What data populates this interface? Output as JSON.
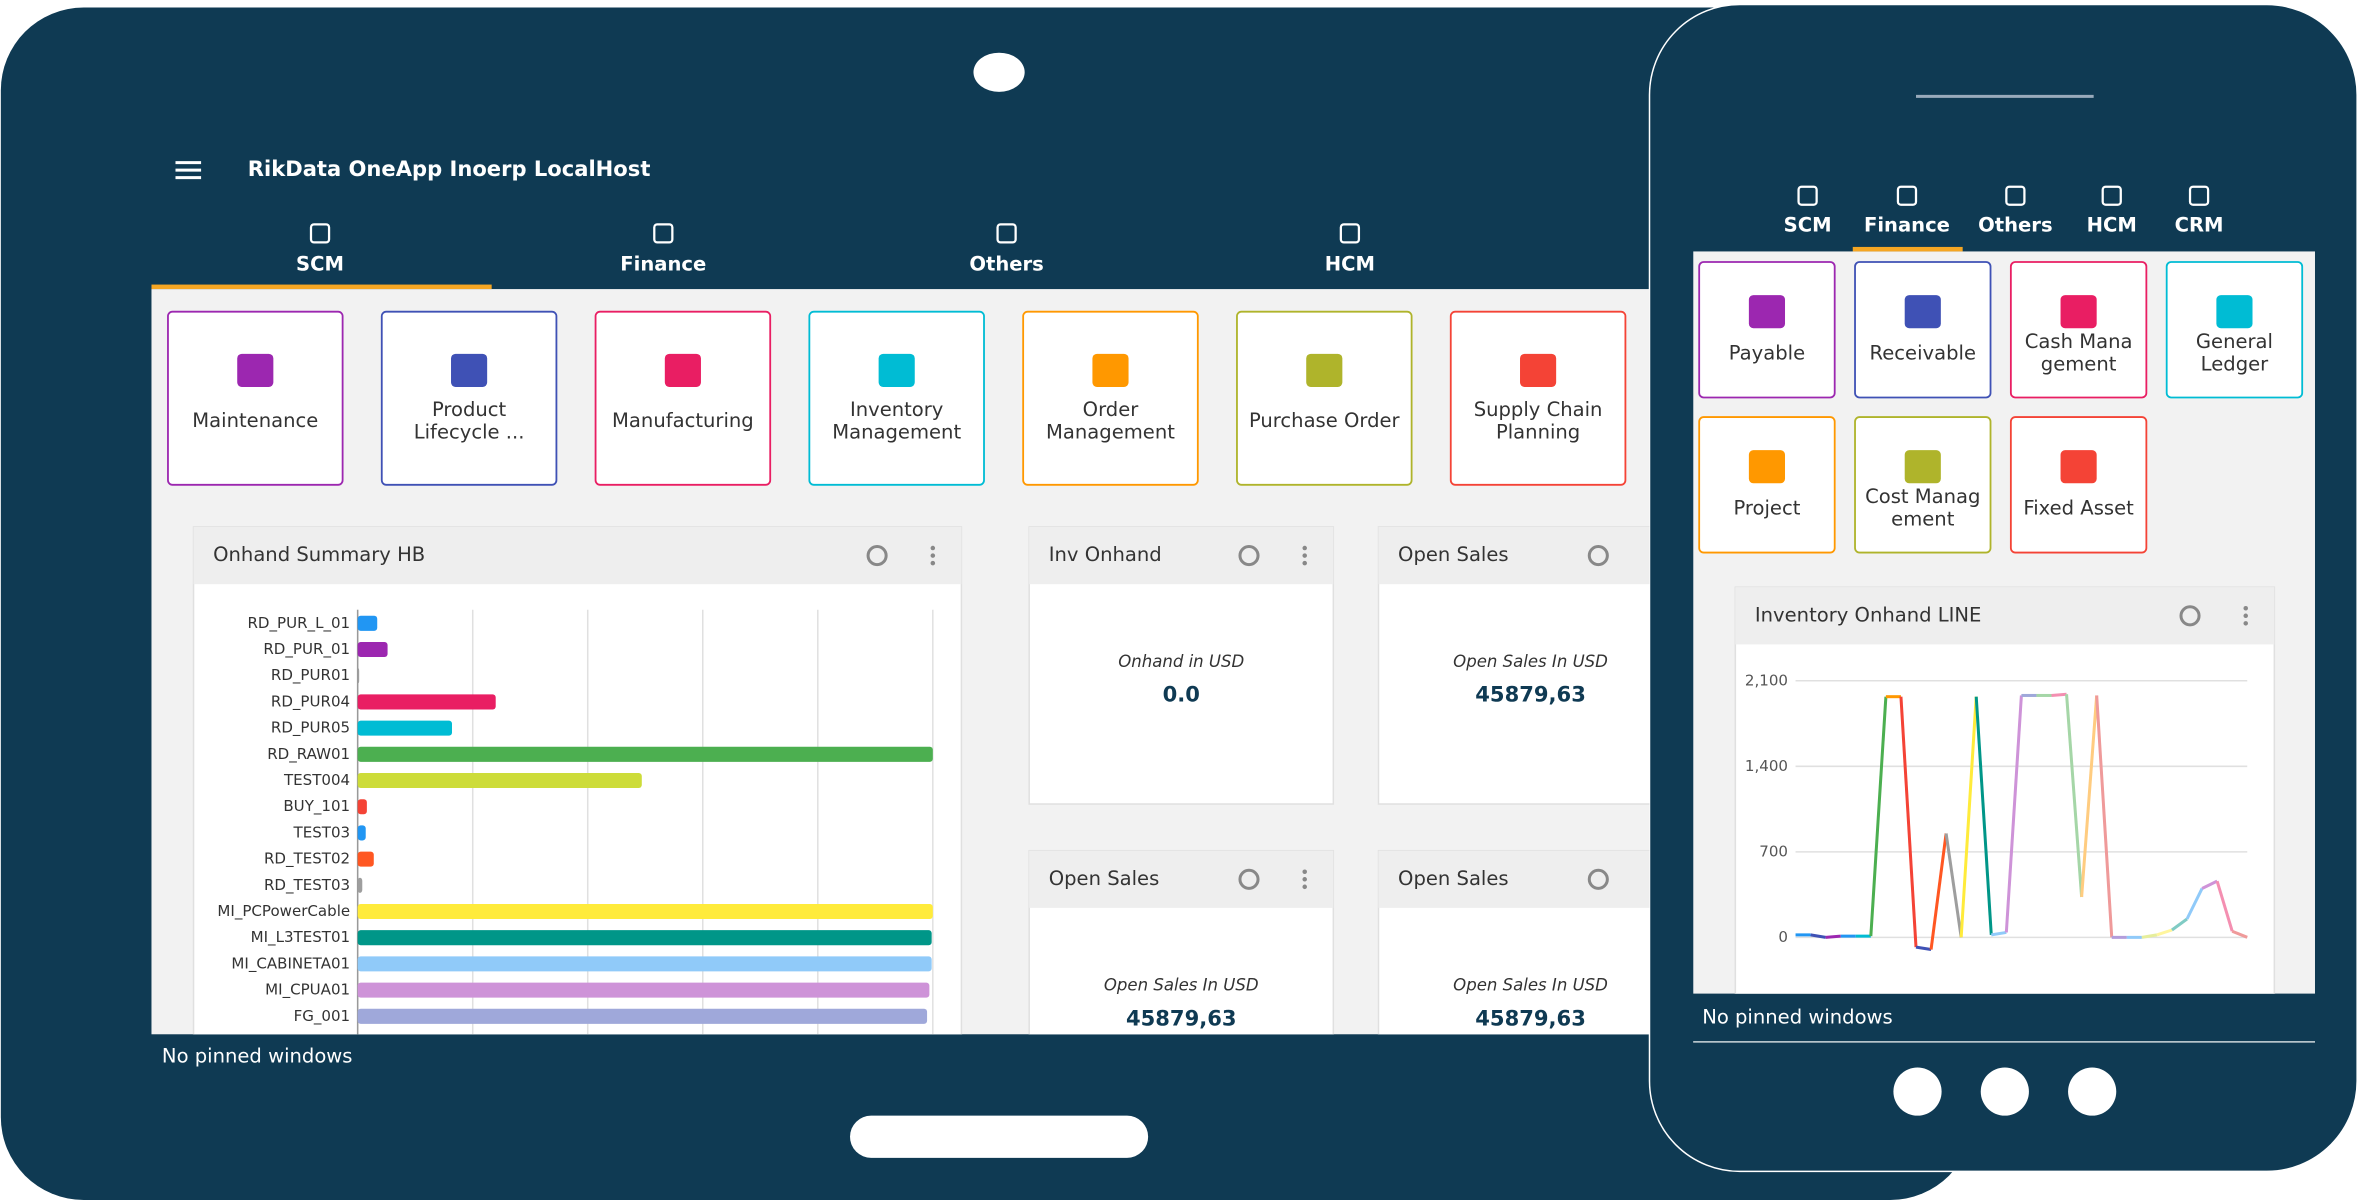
{
  "tablet": {
    "app_title": "RikData OneApp Inoerp LocalHost",
    "tabs": [
      "SCM",
      "Finance",
      "Others",
      "HCM"
    ],
    "tiles": [
      [
        "Maintenance"
      ],
      [
        "Product",
        "Lifecycle ..."
      ],
      [
        "Manufacturing"
      ],
      [
        "Inventory",
        "Management"
      ],
      [
        "Order",
        "Management"
      ],
      [
        "Purchase Order"
      ],
      [
        "Supply Chain",
        "Planning"
      ]
    ],
    "tile_colors": [
      "#9c27b0",
      "#3f51b5",
      "#e91e63",
      "#00bcd4",
      "#ff9800",
      "#afb42b",
      "#f44336"
    ],
    "widgets": [
      {
        "title": "Inv Onhand",
        "label": "Onhand in USD",
        "value": "0.0"
      },
      {
        "title": "Open Sales",
        "label": "Open Sales In USD",
        "value": "45879,63"
      },
      {
        "title": "Open Sales",
        "label": "Open Sales In USD",
        "value": "45879,63"
      },
      {
        "title": "Open Sales",
        "label": "Open Sales In USD",
        "value": "45879,63"
      }
    ],
    "footer": "No pinned windows"
  },
  "phone": {
    "tabs": [
      "SCM",
      "Finance",
      "Others",
      "HCM",
      "CRM"
    ],
    "tiles": [
      [
        "Payable"
      ],
      [
        "Receivable"
      ],
      [
        "Cash Mana",
        "gement"
      ],
      [
        "General",
        "Ledger"
      ],
      [
        "Project"
      ],
      [
        "Cost Manag",
        "ement"
      ],
      [
        "Fixed Asset"
      ]
    ],
    "tile_colors": [
      "#9c27b0",
      "#3f51b5",
      "#e91e63",
      "#00bcd4",
      "#ff9800",
      "#afb42b",
      "#f44336"
    ],
    "footer": "No pinned windows"
  },
  "chart_data": [
    {
      "type": "hbar",
      "title": "Onhand Summary HB",
      "categories": [
        "RD_PUR_L_01",
        "RD_PUR_01",
        "RD_PUR01",
        "RD_PUR04",
        "RD_PUR05",
        "RD_RAW01",
        "TEST004",
        "BUY_101",
        "TEST03",
        "RD_TEST02",
        "RD_TEST03",
        "MI_PCPowerCable",
        "MI_L3TEST01",
        "MI_CABINETA01",
        "MI_CPUA01",
        "FG_001"
      ],
      "values": [
        0.17,
        0.26,
        0.01,
        1.2,
        0.82,
        5,
        2.47,
        0.08,
        0.07,
        0.14,
        0.04,
        5,
        4.99,
        4.99,
        4.97,
        4.95
      ],
      "colors": [
        "#2196f3",
        "#9c27b0",
        "#9e9e9e",
        "#e91e63",
        "#00bcd4",
        "#4caf50",
        "#cddc39",
        "#f44336",
        "#2196f3",
        "#ff5722",
        "#9e9e9e",
        "#ffeb3b",
        "#009688",
        "#90caf9",
        "#ce93d8",
        "#9fa8da"
      ],
      "xlim": [
        0,
        5
      ],
      "xticks": [
        0,
        1,
        2,
        3,
        4,
        5
      ],
      "grid": true
    },
    {
      "type": "line",
      "title": "Inventory Onhand LINE",
      "values": [
        20,
        20,
        0,
        10,
        10,
        10,
        1970,
        1970,
        -80,
        -100,
        850,
        0,
        1970,
        20,
        40,
        1980,
        1980,
        1980,
        1990,
        330,
        1980,
        0,
        0,
        0,
        20,
        60,
        150,
        400,
        460,
        50,
        0
      ],
      "segment_colors": [
        "#2196f3",
        "#3f51b5",
        "#9c27b0",
        "#2196f3",
        "#00bcd4",
        "#4caf50",
        "#ff9800",
        "#f44336",
        "#3f51b5",
        "#ff5722",
        "#9e9e9e",
        "#ffeb3b",
        "#009688",
        "#90caf9",
        "#ce93d8",
        "#9fa8da",
        "#a5d6a7",
        "#f48fb1",
        "#a5d6a7",
        "#ffcc80",
        "#ef9a9a",
        "#b39ddb",
        "#90caf9",
        "#e6ee9c",
        "#fff59d",
        "#80cbc4",
        "#90caf9",
        "#ce93d8",
        "#f48fb1",
        "#ef9a9a"
      ],
      "ylim": [
        -400,
        2250
      ],
      "yticks": [
        0,
        700,
        {
          "value": 1400,
          "label": "1,400"
        },
        {
          "value": 2100,
          "label": "2,100"
        }
      ],
      "grid": true
    }
  ]
}
